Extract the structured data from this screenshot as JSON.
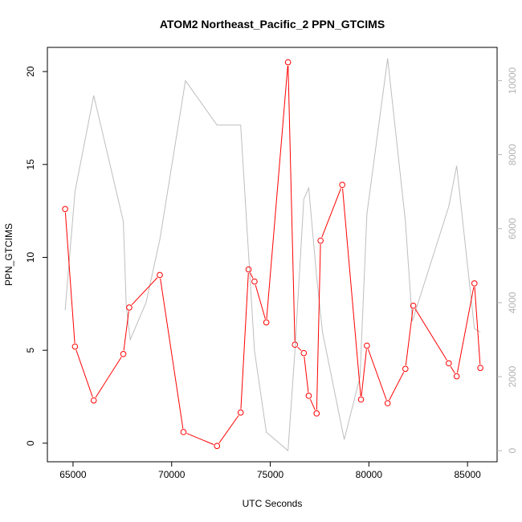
{
  "chart_data": {
    "type": "line",
    "title": "ATOM2 Northeast_Pacific_2 PPN_GTCIMS",
    "xlabel": "UTC Seconds",
    "ylabel": "PPN_GTCIMS",
    "xlim": [
      63700,
      86500
    ],
    "ylim": [
      -1,
      21.3
    ],
    "y2lim": [
      -300,
      10900
    ],
    "x_ticks": [
      65000,
      70000,
      75000,
      80000,
      85000
    ],
    "x_tick_labels": [
      "65000",
      "70000",
      "75000",
      "80000",
      "85000"
    ],
    "y_ticks": [
      0,
      5,
      10,
      15,
      20
    ],
    "y_tick_labels": [
      "0",
      "5",
      "10",
      "15",
      "20"
    ],
    "y2_ticks": [
      0,
      2000,
      4000,
      6000,
      8000,
      10000
    ],
    "y2_tick_labels": [
      "0",
      "2000",
      "4000",
      "6000",
      "8000",
      "10000"
    ],
    "series": [
      {
        "axis": "left",
        "color": "#ff0000",
        "marker": "open-circle",
        "x": [
          64600,
          65100,
          66050,
          67550,
          67850,
          69400,
          70600,
          72300,
          73500,
          73900,
          74200,
          74800,
          75900,
          76250,
          76700,
          76950,
          77350,
          77550,
          78650,
          79600,
          79900,
          80950,
          81850,
          82250,
          84050,
          84450,
          85350,
          85650
        ],
        "values": [
          12.6,
          5.2,
          2.3,
          4.8,
          7.3,
          9.05,
          0.6,
          -0.15,
          1.65,
          9.35,
          8.7,
          6.5,
          20.5,
          5.3,
          4.85,
          2.55,
          1.6,
          10.9,
          13.9,
          2.35,
          5.25,
          2.15,
          4.0,
          7.4,
          4.3,
          3.6,
          8.6,
          4.05
        ]
      },
      {
        "axis": "right",
        "color": "#bebebe",
        "marker": "none",
        "x": [
          64600,
          65100,
          66050,
          67550,
          67700,
          67900,
          68700,
          69400,
          70700,
          72300,
          73500,
          74200,
          74800,
          75900,
          76250,
          76700,
          76950,
          77350,
          77650,
          78750,
          79550,
          79900,
          80950,
          81850,
          82200,
          84050,
          84450,
          85350,
          85650
        ],
        "values": [
          3800,
          7000,
          9600,
          6200,
          3900,
          3000,
          4000,
          5700,
          10000,
          8800,
          8800,
          2700,
          500,
          0,
          2700,
          6800,
          7100,
          4700,
          3200,
          300,
          2000,
          6400,
          10600,
          6200,
          3500,
          6600,
          7700,
          3300,
          3200
        ]
      }
    ]
  }
}
